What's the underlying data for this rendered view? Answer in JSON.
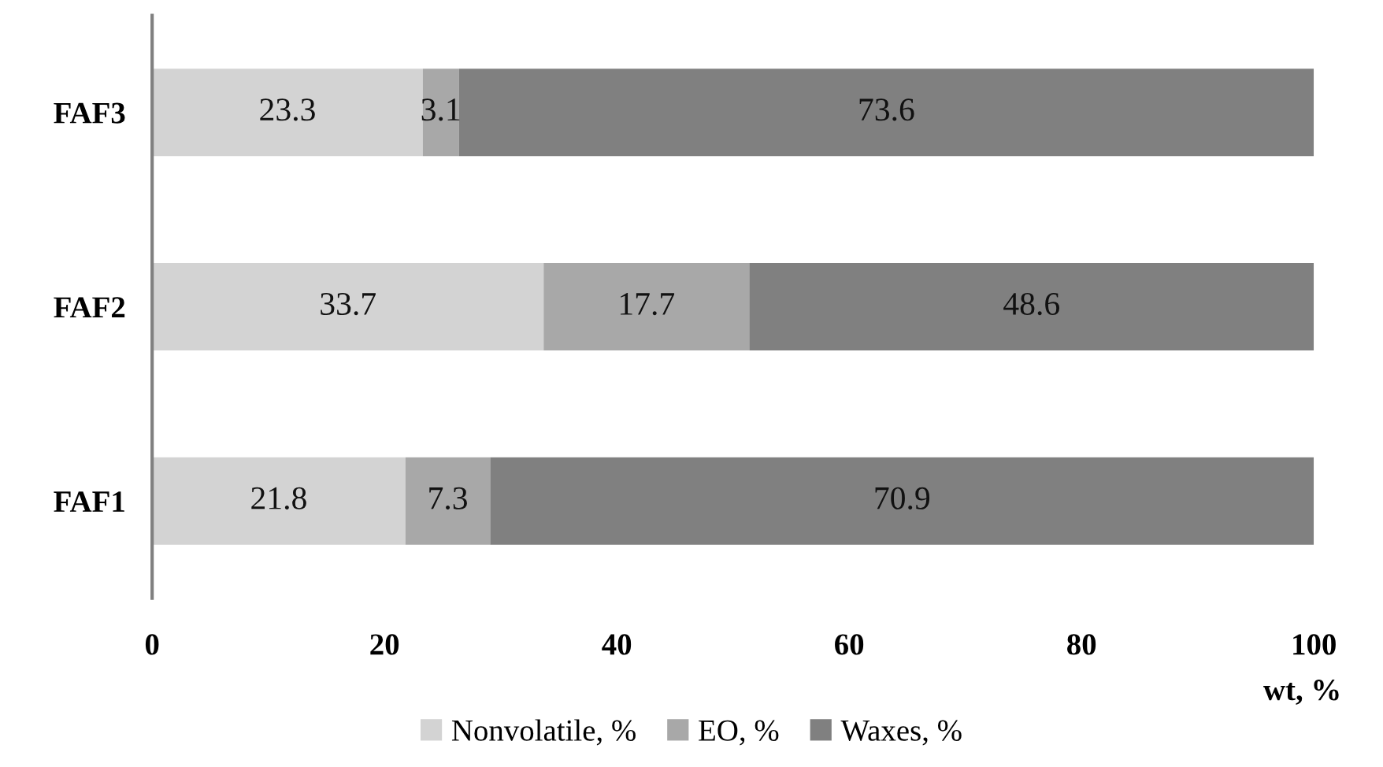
{
  "chart_data": {
    "type": "bar",
    "orientation": "horizontal",
    "stacked": true,
    "categories": [
      "FAF3",
      "FAF2",
      "FAF1"
    ],
    "series": [
      {
        "name": "Nonvolatile, %",
        "color": "#d3d3d3",
        "values": [
          23.3,
          33.7,
          21.8
        ]
      },
      {
        "name": "EO, %",
        "color": "#a8a8a8",
        "values": [
          3.1,
          17.7,
          7.3
        ]
      },
      {
        "name": "Waxes, %",
        "color": "#808080",
        "values": [
          73.6,
          48.6,
          70.9
        ]
      }
    ],
    "xlim": [
      0,
      100
    ],
    "xticks": [
      0,
      20,
      40,
      60,
      80,
      100
    ],
    "xlabel": "wt, %",
    "data_labels": true,
    "legend": "bottom",
    "grid": false
  }
}
